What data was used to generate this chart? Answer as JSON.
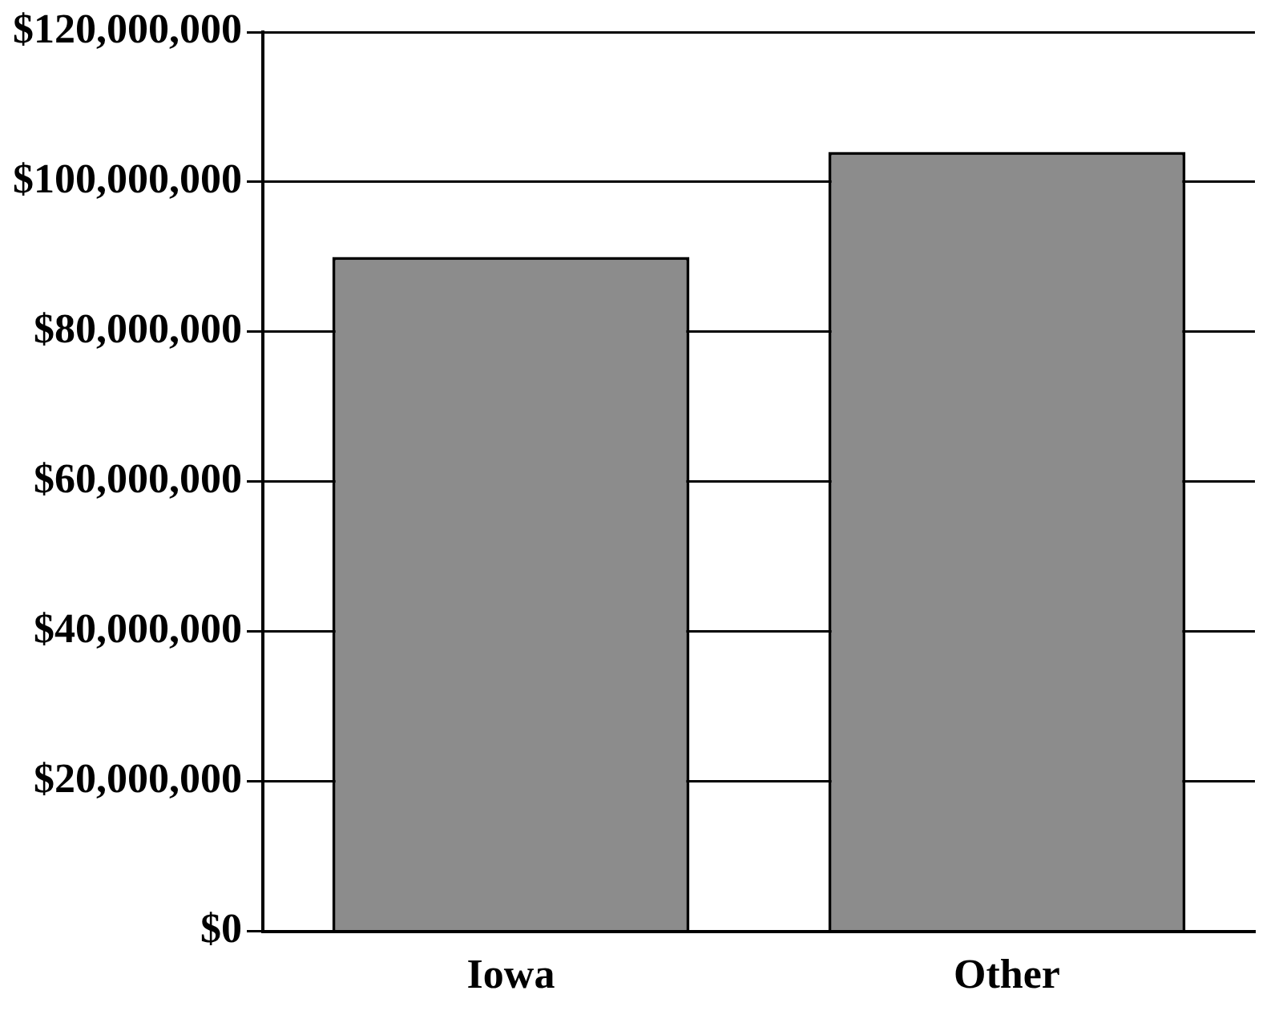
{
  "chart_data": {
    "type": "bar",
    "categories": [
      "Iowa",
      "Other"
    ],
    "values": [
      90000000,
      104000000
    ],
    "color": "#8c8c8c",
    "ylim": [
      0,
      120000000
    ],
    "yticks": [
      {
        "value": 0,
        "label": "$0"
      },
      {
        "value": 20000000,
        "label": "$20,000,000"
      },
      {
        "value": 40000000,
        "label": "$40,000,000"
      },
      {
        "value": 60000000,
        "label": "$60,000,000"
      },
      {
        "value": 80000000,
        "label": "$80,000,000"
      },
      {
        "value": 100000000,
        "label": "$100,000,000"
      },
      {
        "value": 120000000,
        "label": "$120,000,000"
      }
    ],
    "grid": "y"
  }
}
